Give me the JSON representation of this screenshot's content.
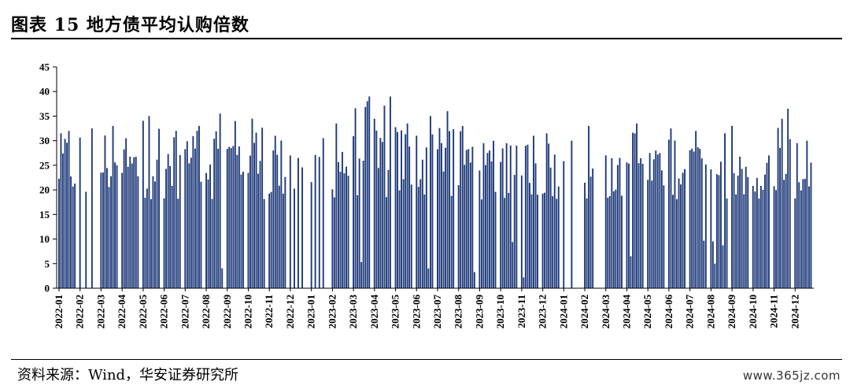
{
  "title": "图表 15 地方债平均认购倍数",
  "source": "资料来源：Wind，华安证券研究所",
  "watermark": "www.365jz.com",
  "colors": {
    "bar": "#1f3a7a",
    "axis": "#000000"
  },
  "chart_data": {
    "type": "bar",
    "title": "",
    "xlabel": "",
    "ylabel": "",
    "ylim": [
      0,
      45
    ],
    "yticks": [
      0,
      5,
      10,
      15,
      20,
      25,
      30,
      35,
      40,
      45
    ],
    "grid": false,
    "legend": "none",
    "x_tick_labels": [
      "2022-01",
      "2022-02",
      "2022-03",
      "2022-04",
      "2022-05",
      "2022-06",
      "2022-07",
      "2022-08",
      "2022-09",
      "2022-10",
      "2022-11",
      "2022-12",
      "2023-01",
      "2023-02",
      "2023-03",
      "2023-04",
      "2023-05",
      "2023-06",
      "2023-07",
      "2023-08",
      "2023-09",
      "2023-10",
      "2023-11",
      "2023-12",
      "2024-01",
      "2024-02",
      "2024-03",
      "2024-04",
      "2024-05",
      "2024-06",
      "2024-07",
      "2024-08",
      "2024-09",
      "2024-10",
      "2024-11",
      "2024-12"
    ],
    "monthly_peaks": [
      32,
      32.5,
      33,
      30.5,
      35,
      32,
      33,
      35.5,
      34,
      34.5,
      31,
      27,
      30.5,
      33.5,
      39,
      39,
      33.5,
      35,
      36,
      33,
      30,
      29.5,
      31,
      31.5,
      30,
      33,
      27,
      33.5,
      28,
      32.5,
      32,
      31.5,
      33,
      27,
      36.5,
      30
    ],
    "value_range": [
      2,
      39
    ]
  }
}
